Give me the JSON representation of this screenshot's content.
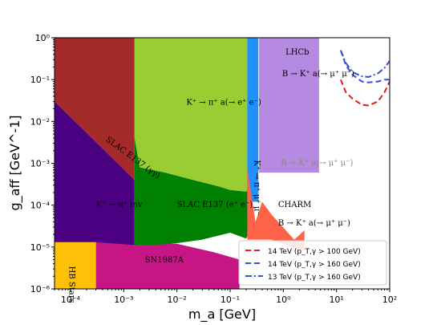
{
  "chart_data": {
    "type": "area",
    "x_scale": "log",
    "y_scale": "log",
    "xlim": [
      5e-05,
      100
    ],
    "ylim": [
      1e-06,
      1
    ],
    "xlabel": "m_a [GeV]",
    "ylabel": "g_aff [GeV^-1]",
    "x_ticks": [
      "10⁻⁴",
      "10⁻³",
      "10⁻²",
      "10⁻¹",
      "10⁰",
      "10¹",
      "10²"
    ],
    "y_ticks": [
      "10⁻⁶",
      "10⁻⁵",
      "10⁻⁴",
      "10⁻³",
      "10⁻²",
      "10⁻¹",
      "10⁰"
    ],
    "regions": [
      {
        "label": "SLAC E137 (γγ)",
        "color": "#a52a2a",
        "points": [
          [
            5e-05,
            1
          ],
          [
            0.0016,
            1
          ],
          [
            0.0016,
            0.0004
          ],
          [
            5e-05,
            0.03
          ]
        ]
      },
      {
        "label": "K⁺ → π⁺ inv",
        "color": "#4b0082",
        "points": [
          [
            5e-05,
            0.03
          ],
          [
            0.0016,
            0.0004
          ],
          [
            0.0016,
            1e-05
          ],
          [
            0.0003,
            1.3e-05
          ],
          [
            5e-05,
            1.3e-05
          ]
        ]
      },
      {
        "label": "K⁺ → π⁺ a(→ e⁺ e⁻)",
        "color": "#9acd32",
        "points": [
          [
            0.0016,
            1
          ],
          [
            0.25,
            1
          ],
          [
            0.25,
            0.0003
          ],
          [
            0.2,
            0.00021
          ],
          [
            0.1,
            0.00023
          ],
          [
            0.06,
            0.00028
          ],
          [
            0.02,
            0.0004
          ],
          [
            0.006,
            0.0006
          ],
          [
            0.002,
            0.0008
          ],
          [
            0.0016,
            0.004
          ]
        ]
      },
      {
        "label": "SLAC E137 (e⁺ e⁻)",
        "color": "#008000",
        "points": [
          [
            0.0016,
            0.004
          ],
          [
            0.002,
            0.0008
          ],
          [
            0.006,
            0.0006
          ],
          [
            0.02,
            0.0004
          ],
          [
            0.06,
            0.00028
          ],
          [
            0.1,
            0.00023
          ],
          [
            0.2,
            0.00021
          ],
          [
            0.25,
            0.0003
          ],
          [
            0.25,
            2.8e-05
          ],
          [
            0.2,
            1.6e-05
          ],
          [
            0.1,
            2.2e-05
          ],
          [
            0.03,
            1.5e-05
          ],
          [
            0.005,
            1.1e-05
          ],
          [
            0.0016,
            1.1e-05
          ]
        ]
      },
      {
        "label": "SN1987A",
        "color": "#c71585",
        "points": [
          [
            0.0003,
            1.3e-05
          ],
          [
            0.002,
            1.1e-05
          ],
          [
            0.01,
            1.2e-05
          ],
          [
            0.05,
            7.5e-06
          ],
          [
            0.15,
            5e-06
          ],
          [
            0.15,
            1e-06
          ],
          [
            0.0003,
            1e-06
          ]
        ]
      },
      {
        "label": "HB Stars",
        "color": "#ffc107",
        "points": [
          [
            5e-05,
            1.3e-05
          ],
          [
            0.0003,
            1.3e-05
          ],
          [
            0.0003,
            1e-06
          ],
          [
            5e-05,
            1e-06
          ]
        ]
      },
      {
        "label": "K⁺ → π⁺ μ⁺ μ⁻",
        "color": "#1e90ff",
        "points": [
          [
            0.21,
            1
          ],
          [
            0.34,
            1
          ],
          [
            0.34,
            0.00012
          ],
          [
            0.21,
            0.00012
          ]
        ]
      },
      {
        "label": "B → K⁺ a(→ μ⁺ μ⁻)",
        "color": "#b58ae0",
        "points": [
          [
            0.35,
            1
          ],
          [
            4.7,
            1
          ],
          [
            4.7,
            0.0006
          ],
          [
            0.35,
            0.0006
          ]
        ]
      },
      {
        "label": "CHARM B → K⁺ a(→ μ⁺ μ⁻)",
        "color": "#ff6347",
        "points": [
          [
            0.21,
            0.0008
          ],
          [
            0.3,
            4e-05
          ],
          [
            0.4,
            0.00012
          ],
          [
            0.6,
            6e-05
          ],
          [
            1.6,
            1.5e-05
          ],
          [
            2.5,
            2.5e-05
          ],
          [
            2.5,
            8e-06
          ],
          [
            0.6,
            1.5e-05
          ],
          [
            0.21,
            1.5e-05
          ]
        ]
      }
    ],
    "series": [
      {
        "name": "14 TeV (p_T,γ > 100 GeV)",
        "style": "dashed",
        "color": "#e41a1c",
        "x": [
          12,
          15,
          20,
          30,
          40,
          60,
          80,
          100
        ],
        "y": [
          0.1,
          0.05,
          0.035,
          0.025,
          0.024,
          0.03,
          0.05,
          0.09
        ]
      },
      {
        "name": "14 TeV (p_T,γ > 160 GeV)",
        "style": "dashed",
        "color": "#3050e0",
        "x": [
          12,
          15,
          20,
          30,
          40,
          60,
          80,
          100
        ],
        "y": [
          0.5,
          0.22,
          0.13,
          0.09,
          0.085,
          0.09,
          0.1,
          0.1
        ]
      },
      {
        "name": "13 TeV (p_T,γ > 160 GeV)",
        "style": "dash-dot",
        "color": "#3050e0",
        "x": [
          12,
          15,
          20,
          30,
          40,
          60,
          80,
          100
        ],
        "y": [
          0.5,
          0.25,
          0.15,
          0.12,
          0.115,
          0.14,
          0.19,
          0.28
        ]
      }
    ],
    "region_labels": [
      {
        "text": "SLAC E137 (γγ)",
        "x": 0.00045,
        "y": 0.0035,
        "rotate": 36,
        "color": "#000000"
      },
      {
        "text": "K⁺ → π⁺ a(→ e⁺ e⁻)",
        "x": 0.015,
        "y": 0.025,
        "rotate": 0,
        "color": "#000000"
      },
      {
        "text": "K⁺ → π⁺ inv",
        "x": 0.0003,
        "y": 9e-05,
        "rotate": 0,
        "color": "#000000"
      },
      {
        "text": "SLAC E137 (e⁺ e⁻)",
        "x": 0.01,
        "y": 9e-05,
        "rotate": 0,
        "color": "#000000"
      },
      {
        "text": "SN1987A",
        "x": 0.0025,
        "y": 4.3e-06,
        "rotate": 0,
        "color": "#000000"
      },
      {
        "text": "HB Stars",
        "x": 9.5e-05,
        "y": 3.5e-06,
        "rotate": 90,
        "color": "#000000"
      },
      {
        "text": "K⁺ → π⁺ μ⁺ μ⁻",
        "x": 0.29,
        "y": 0.0012,
        "rotate": 90,
        "color": "#000000"
      },
      {
        "text": "LHCb",
        "x": 1.1,
        "y": 0.4,
        "rotate": 0,
        "color": "#000000"
      },
      {
        "text": "B → K⁺ a(→ μ⁺ μ⁻)",
        "x": 0.95,
        "y": 0.12,
        "rotate": 0,
        "color": "#000000"
      },
      {
        "text": "B → K⁺ a(→ μ⁺ μ⁻)",
        "x": 0.9,
        "y": 0.0009,
        "rotate": 0,
        "color": "#888888"
      },
      {
        "text": "CHARM",
        "x": 0.8,
        "y": 9e-05,
        "rotate": 0,
        "color": "#000000"
      },
      {
        "text": "B → K⁺ a(→ μ⁺ μ⁻)",
        "x": 0.8,
        "y": 3.3e-05,
        "rotate": 0,
        "color": "#000000"
      }
    ],
    "legend": {
      "placement": "lower-right"
    },
    "grid": false
  }
}
